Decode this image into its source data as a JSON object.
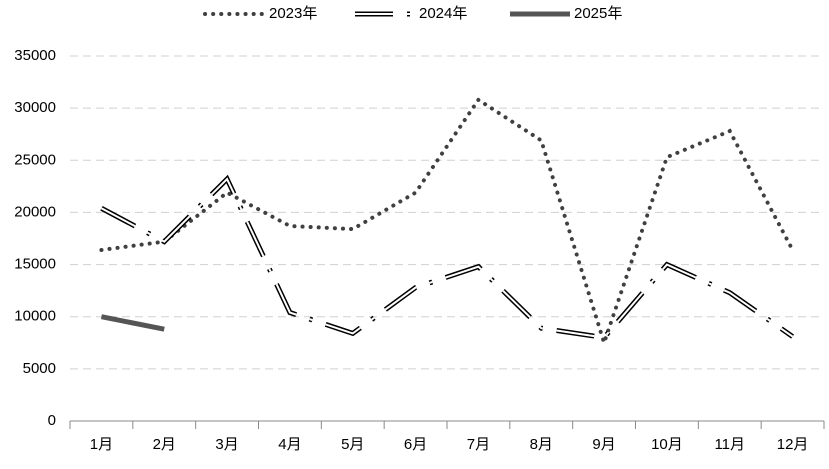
{
  "chart_data": {
    "type": "line",
    "categories": [
      "1月",
      "2月",
      "3月",
      "4月",
      "5月",
      "6月",
      "7月",
      "8月",
      "9月",
      "10月",
      "11月",
      "12月"
    ],
    "series": [
      {
        "name": "2023年",
        "color": "#404040",
        "style": "dotted",
        "values": [
          16400,
          17200,
          21900,
          18700,
          18400,
          21900,
          30800,
          26900,
          7500,
          25300,
          27800,
          16400
        ]
      },
      {
        "name": "2024年",
        "color": "#000000",
        "style": "dashdot",
        "values": [
          20400,
          17200,
          23200,
          10400,
          8400,
          12800,
          14800,
          8900,
          8000,
          15000,
          12300,
          8100
        ]
      },
      {
        "name": "2025年",
        "color": "#555555",
        "style": "solid",
        "values": [
          10000,
          8800,
          null,
          null,
          null,
          null,
          null,
          null,
          null,
          null,
          null,
          null
        ]
      }
    ],
    "ylim": [
      0,
      35000
    ],
    "yticks": [
      0,
      5000,
      10000,
      15000,
      20000,
      25000,
      30000,
      35000
    ],
    "grid": true,
    "legend": "top"
  }
}
